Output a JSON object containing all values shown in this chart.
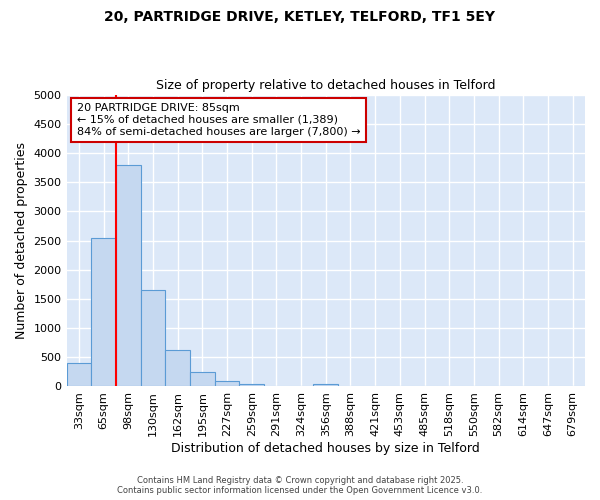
{
  "title_line1": "20, PARTRIDGE DRIVE, KETLEY, TELFORD, TF1 5EY",
  "title_line2": "Size of property relative to detached houses in Telford",
  "xlabel": "Distribution of detached houses by size in Telford",
  "ylabel": "Number of detached properties",
  "categories": [
    "33sqm",
    "65sqm",
    "98sqm",
    "130sqm",
    "162sqm",
    "195sqm",
    "227sqm",
    "259sqm",
    "291sqm",
    "324sqm",
    "356sqm",
    "388sqm",
    "421sqm",
    "453sqm",
    "485sqm",
    "518sqm",
    "550sqm",
    "582sqm",
    "614sqm",
    "647sqm",
    "679sqm"
  ],
  "values": [
    400,
    2550,
    3800,
    1650,
    625,
    250,
    100,
    50,
    0,
    0,
    50,
    0,
    0,
    0,
    0,
    0,
    0,
    0,
    0,
    0,
    0
  ],
  "bar_color": "#c5d8f0",
  "bar_edge_color": "#5b9bd5",
  "red_line_x": 1.5,
  "annotation_line1": "20 PARTRIDGE DRIVE: 85sqm",
  "annotation_line2": "← 15% of detached houses are smaller (1,389)",
  "annotation_line3": "84% of semi-detached houses are larger (7,800) →",
  "annotation_box_color": "#ffffff",
  "annotation_box_edge": "#cc0000",
  "ylim": [
    0,
    5000
  ],
  "yticks": [
    0,
    500,
    1000,
    1500,
    2000,
    2500,
    3000,
    3500,
    4000,
    4500,
    5000
  ],
  "bg_color": "#dce8f8",
  "fig_bg_color": "#ffffff",
  "grid_color": "#ffffff",
  "footer1": "Contains HM Land Registry data © Crown copyright and database right 2025.",
  "footer2": "Contains public sector information licensed under the Open Government Licence v3.0."
}
